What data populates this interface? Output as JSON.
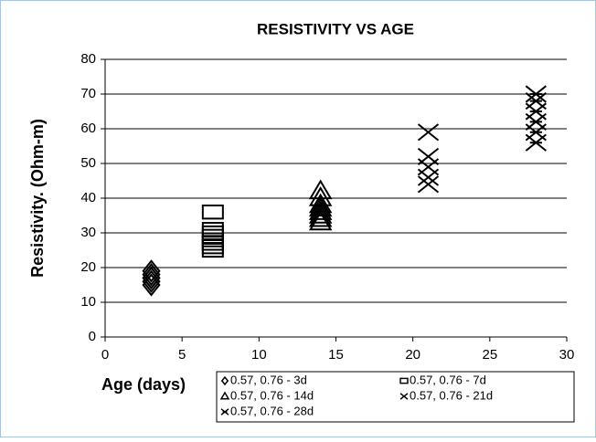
{
  "chart_data": {
    "type": "scatter",
    "title": "RESISTIVITY VS AGE",
    "x_label": "Age (days)",
    "y_label": "Resistivity. (Ohm-m)",
    "xlim": [
      0,
      30
    ],
    "xticks": [
      0,
      5,
      10,
      15,
      20,
      25,
      30
    ],
    "ylim": [
      0,
      80
    ],
    "yticks": [
      0,
      10,
      20,
      30,
      40,
      50,
      60,
      70,
      80
    ],
    "grid": true,
    "series": [
      {
        "name": "0.57, 0.76 - 3d",
        "color": "#000000",
        "marker": "diamond",
        "x": [
          3,
          3,
          3,
          3,
          3,
          3
        ],
        "values": [
          15,
          16,
          17,
          18,
          19,
          17
        ]
      },
      {
        "name": "0.57, 0.76 - 7d",
        "color": "#000000",
        "marker": "square",
        "x": [
          7,
          7,
          7,
          7,
          7,
          7,
          7,
          7
        ],
        "values": [
          25,
          26,
          27,
          28,
          29,
          30,
          31,
          36
        ]
      },
      {
        "name": "0.57, 0.76 - 14d",
        "color": "#000000",
        "marker": "triangle",
        "x": [
          14,
          14,
          14,
          14,
          14,
          14,
          14,
          14
        ],
        "values": [
          33,
          34,
          35,
          36,
          37,
          38,
          40,
          42
        ]
      },
      {
        "name": "0.57, 0.76 - 21d",
        "color": "#000000",
        "marker": "x",
        "x": [
          21,
          21,
          21,
          21,
          21
        ],
        "values": [
          44,
          46,
          49,
          52,
          59
        ]
      },
      {
        "name": "0.57, 0.76 - 28d",
        "color": "#000000",
        "marker": "star",
        "x": [
          28,
          28,
          28,
          28,
          28,
          28
        ],
        "values": [
          56,
          59,
          62,
          65,
          68,
          70
        ]
      }
    ]
  }
}
